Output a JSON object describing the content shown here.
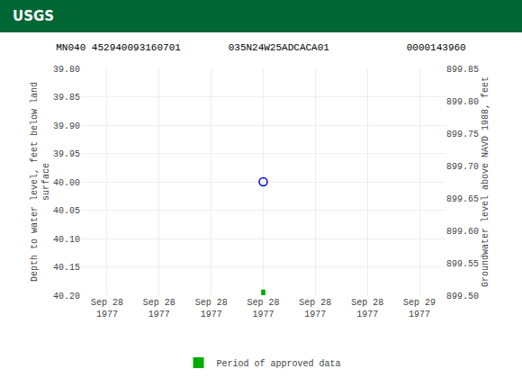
{
  "chart_data": {
    "type": "scatter",
    "subtitle": "USGS",
    "title": "MN040 452940093160701        035N24W25ADCACA01             0000143960",
    "categories": [
      "Sep 28\n1977",
      "Sep 28\n1977",
      "Sep 28\n1977",
      "Sep 28\n1977",
      "Sep 28\n1977",
      "Sep 28\n1977",
      "Sep 29\n1977"
    ],
    "values": [
      null,
      null,
      null,
      40.0,
      null,
      null,
      null
    ],
    "color": "blue",
    "marker": "circle-open",
    "y_label": "Depth to water level, feet below land\nsurface",
    "y2_label": "Groundwater level above NAVD 1988, feet",
    "ylim": [
      40.2,
      39.8
    ],
    "yticks": [
      {
        "value": 39.8,
        "label": "39.80"
      },
      39.85,
      {
        "value": 39.9,
        "label": "39.90"
      },
      39.95,
      {
        "value": 40.0,
        "label": "40.00"
      },
      40.05,
      {
        "value": 40.1,
        "label": "40.10"
      },
      40.15,
      {
        "value": 40.2,
        "label": "40.20"
      }
    ],
    "y2lim": [
      899.5,
      899.85
    ],
    "y2ticks": [
      899.85,
      {
        "value": 899.8,
        "label": "899.80"
      },
      899.75,
      {
        "value": 899.7,
        "label": "899.70"
      },
      899.65,
      {
        "value": 899.6,
        "label": "899.60"
      },
      899.55,
      {
        "value": 899.5,
        "label": "899.50"
      }
    ],
    "grid": true,
    "approved_period": {
      "name": "Period of approved data",
      "color": "#00AA00",
      "values": [
        false,
        false,
        false,
        true,
        false,
        false,
        false
      ]
    },
    "legend": "bottom"
  }
}
